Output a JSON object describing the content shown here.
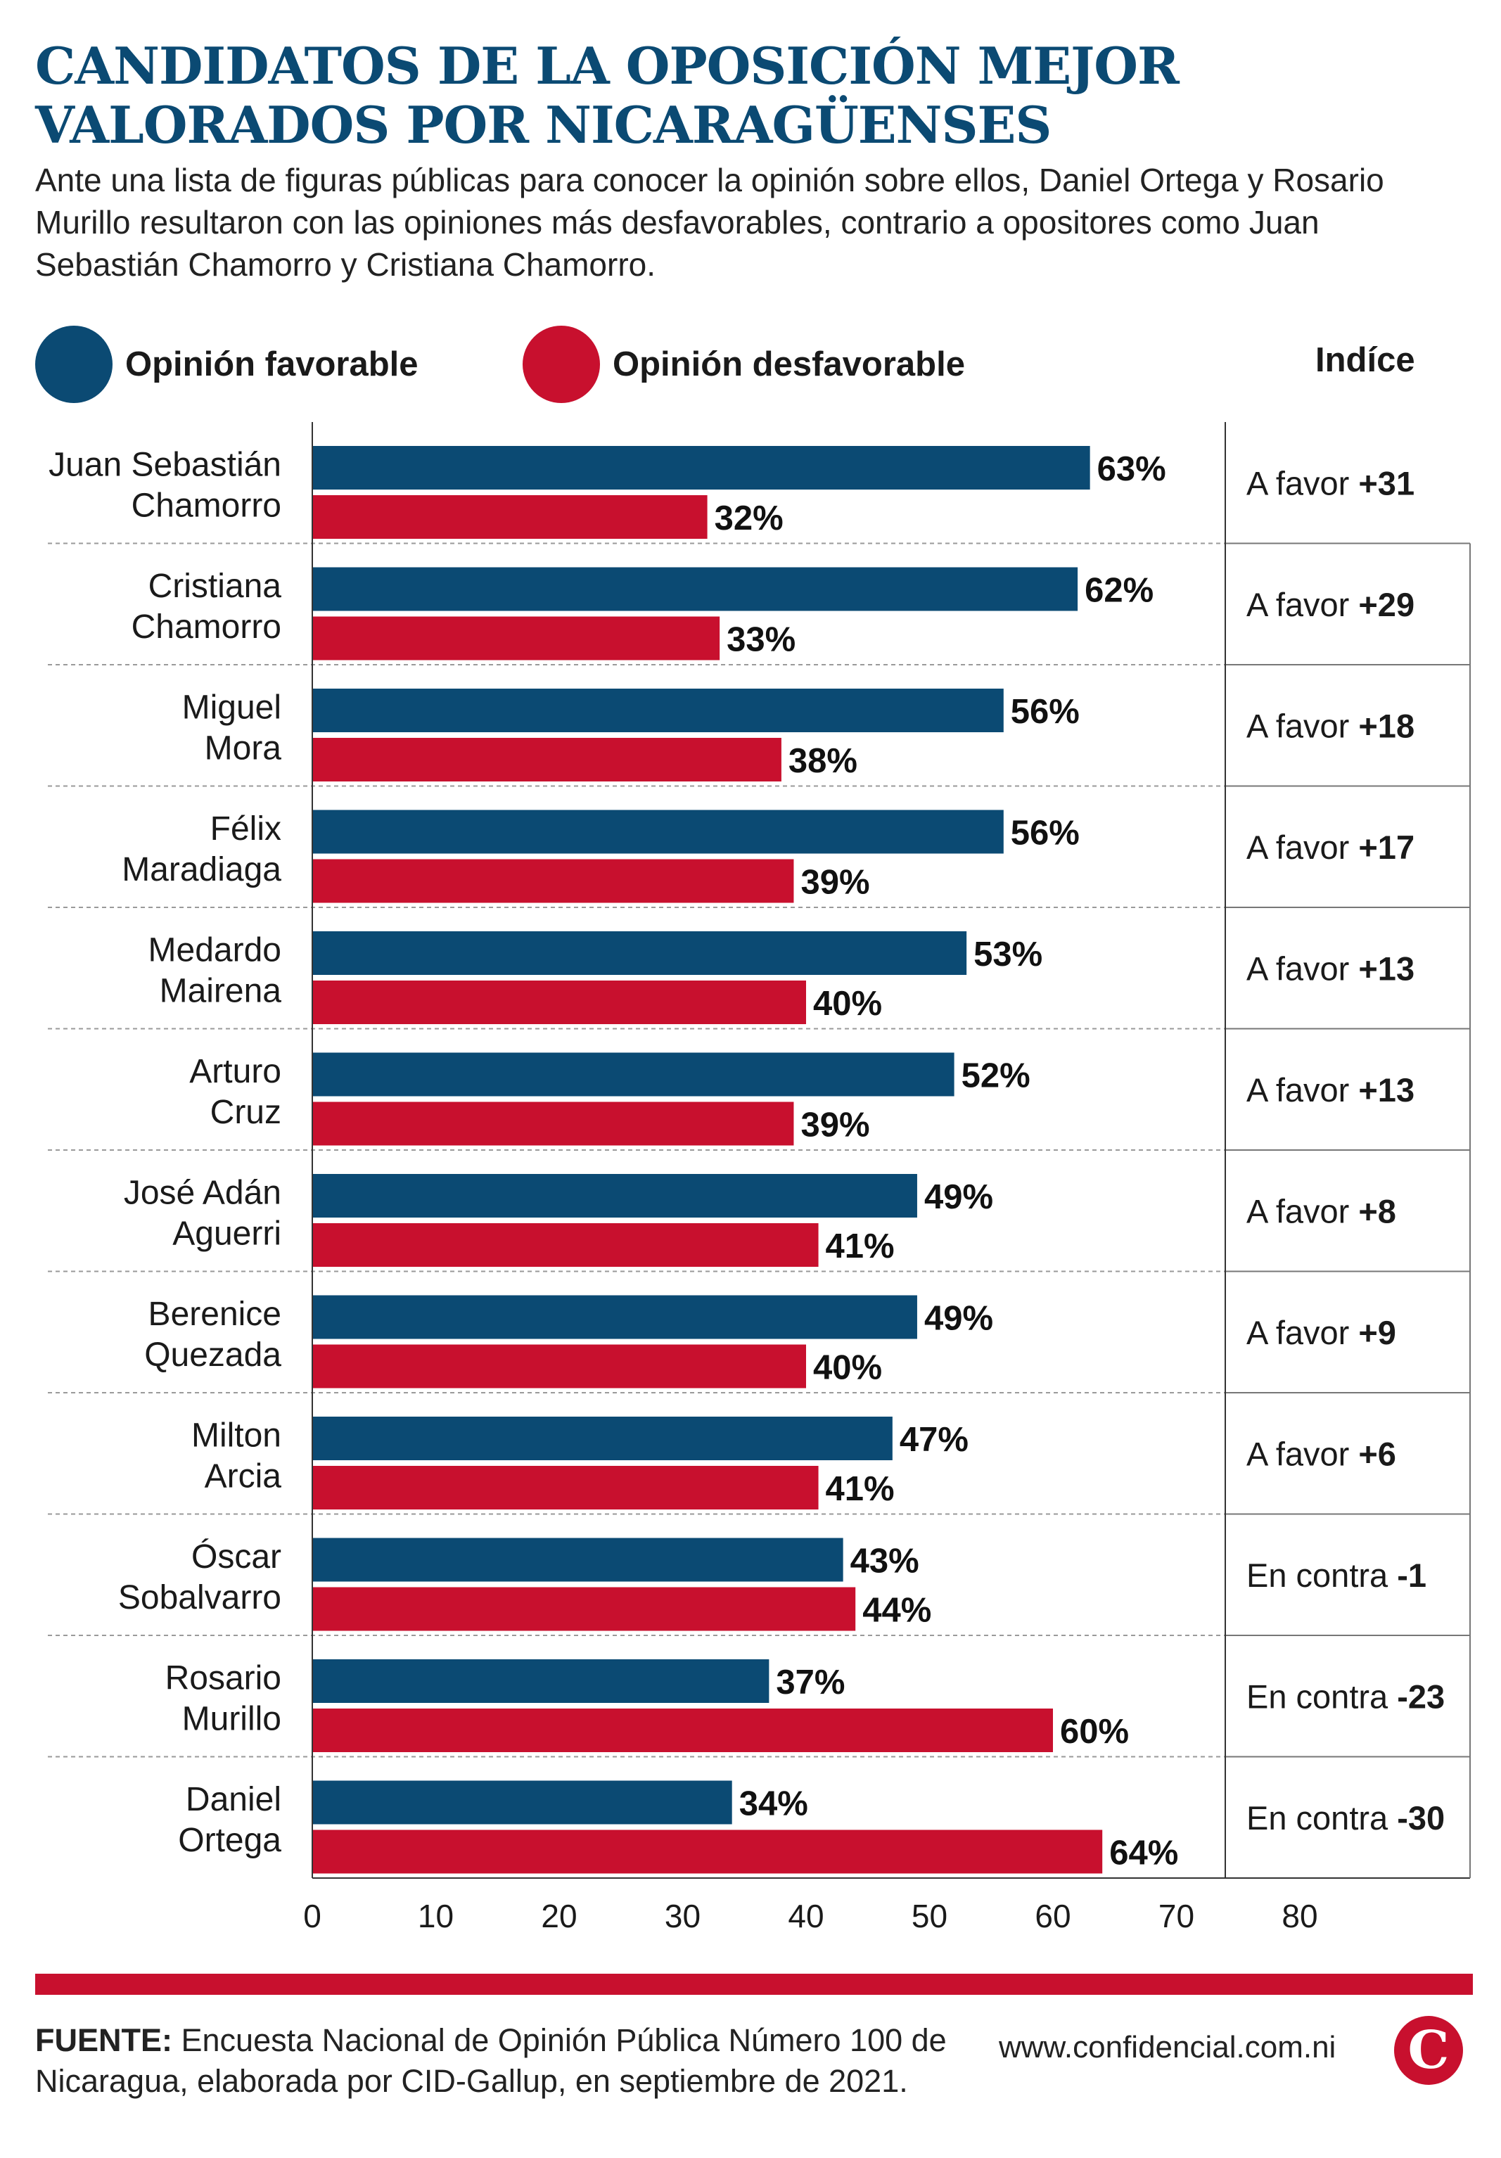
{
  "header": {
    "title_line1": "CANDIDATOS DE LA OPOSICIÓN MEJOR",
    "title_line2": "VALORADOS POR NICARAGÜENSES",
    "subtitle": "Ante una lista de figuras públicas para conocer la opinión sobre ellos, Daniel Ortega y Rosario Murillo resultaron con las opiniones más desfavorables, contrario a opositores como Juan Sebastián Chamorro y Cristiana Chamorro."
  },
  "legend": {
    "favorable": "Opinión favorable",
    "unfavorable": "Opinión desfavorable",
    "index_header": "Indíce"
  },
  "colors": {
    "favorable": "#0b4a73",
    "unfavorable": "#c8102e",
    "title": "#0b4a73"
  },
  "chart_data": {
    "type": "bar",
    "orientation": "horizontal",
    "categories": [
      [
        "Juan Sebastián",
        "Chamorro"
      ],
      [
        "Cristiana",
        "Chamorro"
      ],
      [
        "Miguel",
        "Mora"
      ],
      [
        "Félix",
        "Maradiaga"
      ],
      [
        "Medardo",
        "Mairena"
      ],
      [
        "Arturo",
        "Cruz"
      ],
      [
        "José Adán",
        "Aguerri"
      ],
      [
        "Berenice",
        "Quezada"
      ],
      [
        "Milton",
        "Arcia"
      ],
      [
        "Óscar",
        "Sobalvarro"
      ],
      [
        "Rosario",
        "Murillo"
      ],
      [
        "Daniel",
        "Ortega"
      ]
    ],
    "series": [
      {
        "name": "Opinión favorable",
        "values": [
          63,
          62,
          56,
          56,
          53,
          52,
          49,
          49,
          47,
          43,
          37,
          34
        ]
      },
      {
        "name": "Opinión desfavorable",
        "values": [
          32,
          33,
          38,
          39,
          40,
          39,
          41,
          40,
          41,
          44,
          60,
          64
        ]
      }
    ],
    "index": [
      {
        "label": "A favor",
        "value": "+31"
      },
      {
        "label": "A favor",
        "value": "+29"
      },
      {
        "label": "A favor",
        "value": "+18"
      },
      {
        "label": "A favor",
        "value": "+17"
      },
      {
        "label": "A favor",
        "value": "+13"
      },
      {
        "label": "A favor",
        "value": "+13"
      },
      {
        "label": "A favor",
        "value": "+8"
      },
      {
        "label": "A favor",
        "value": "+9"
      },
      {
        "label": "A favor",
        "value": "+6"
      },
      {
        "label": "En contra",
        "value": "-1"
      },
      {
        "label": "En contra",
        "value": "-23"
      },
      {
        "label": "En contra",
        "value": "-30"
      }
    ],
    "value_suffix": "%",
    "xlim": [
      0,
      80
    ],
    "xticks": [
      0,
      10,
      20,
      30,
      40,
      50,
      60,
      70,
      80
    ],
    "grid": false,
    "legend_position": "top"
  },
  "footer": {
    "source_label": "FUENTE:",
    "source_text": " Encuesta Nacional de Opinión Pública Número 100 de Nicaragua, elaborada por CID-Gallup, en septiembre de 2021.",
    "website": "www.confidencial.com.ni",
    "logo_letter": "C"
  }
}
